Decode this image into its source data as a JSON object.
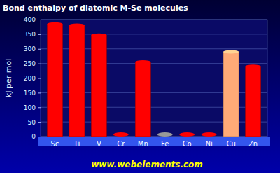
{
  "chart_data": {
    "type": "bar",
    "title": "Bond enthalpy of diatomic M-Se molecules",
    "y_label": "kJ per mol",
    "annotation": "www.webelements.com",
    "categories": [
      "Sc",
      "Ti",
      "V",
      "Cr",
      "Mn",
      "Fe",
      "Co",
      "Ni",
      "Cu",
      "Zn"
    ],
    "values": [
      385,
      381,
      347,
      null,
      255,
      null,
      null,
      null,
      290,
      240
    ],
    "colors": [
      "#ff0000",
      "#ff0000",
      "#ff0000",
      "#ff0000",
      "#ff0000",
      "#999999",
      "#ff0000",
      "#ff0000",
      "#ffaa77",
      "#ff0000"
    ],
    "ylim": [
      0,
      400
    ],
    "yticks": [
      0,
      50,
      100,
      150,
      200,
      250,
      300,
      350,
      400
    ],
    "grid": true
  }
}
